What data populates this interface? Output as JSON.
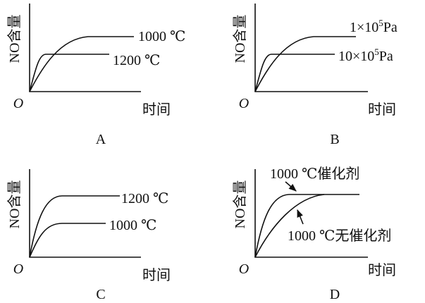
{
  "panels": [
    {
      "label": "A",
      "y_label": "NO含量",
      "x_label": "时间",
      "origin": "O",
      "curves": [
        {
          "text": "1000 ℃"
        },
        {
          "text": "1200 ℃"
        }
      ]
    },
    {
      "label": "B",
      "y_label": "NO含量",
      "x_label": "时间",
      "origin": "O",
      "curves": [
        {
          "base": "1×10",
          "exponent": "5",
          "unit": "Pa"
        },
        {
          "base": "10×10",
          "exponent": "5",
          "unit": "Pa"
        }
      ]
    },
    {
      "label": "C",
      "y_label": "NO含量",
      "x_label": "时间",
      "origin": "O",
      "curves": [
        {
          "text": "1200 ℃"
        },
        {
          "text": "1000 ℃"
        }
      ]
    },
    {
      "label": "D",
      "y_label": "NO含量",
      "x_label": "时间",
      "origin": "O",
      "curves": [
        {
          "text": "1000 ℃催化剂"
        },
        {
          "text": "1000 ℃无催化剂"
        }
      ]
    }
  ]
}
